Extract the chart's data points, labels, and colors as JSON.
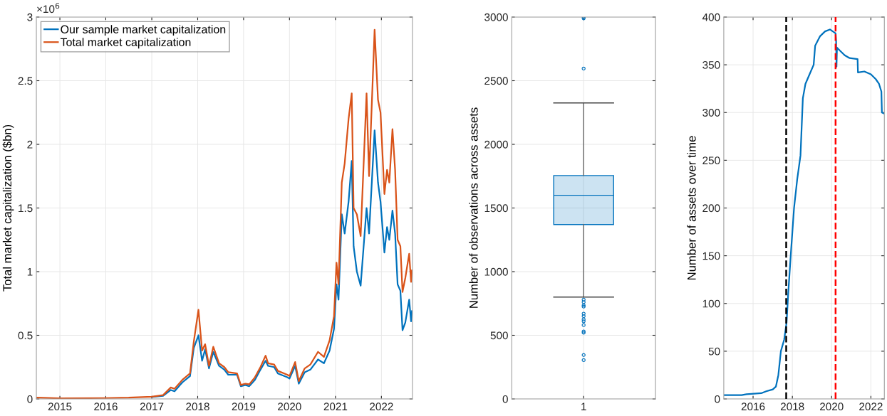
{
  "chart_data": [
    {
      "type": "line",
      "ylabel": "Total market capitalization ($bn)",
      "annotations": [
        "×10$^{6}$"
      ],
      "legend": "top left",
      "grid": true,
      "xlim": [
        "2014-06-28",
        "2022-09-05"
      ],
      "xticks": [
        {
          "value": "2015-01-01",
          "label": "2015"
        },
        {
          "value": "2016-01-01",
          "label": "2016"
        },
        {
          "value": "2017-01-01",
          "label": "2017"
        },
        {
          "value": "2018-01-01",
          "label": "2018"
        },
        {
          "value": "2019-01-01",
          "label": "2019"
        },
        {
          "value": "2020-01-01",
          "label": "2020"
        },
        {
          "value": "2021-01-01",
          "label": "2021"
        },
        {
          "value": "2022-01-01",
          "label": "2022"
        }
      ],
      "ylim": [
        0,
        3
      ],
      "yticks": [
        0,
        0.5,
        1,
        1.5,
        2,
        2.5,
        3
      ],
      "x": [
        "2014-07-01",
        "2015-01-01",
        "2016-01-01",
        "2016-07-01",
        "2017-01-01",
        "2017-04-01",
        "2017-06-01",
        "2017-07-01",
        "2017-09-01",
        "2017-11-01",
        "2017-12-01",
        "2018-01-07",
        "2018-02-05",
        "2018-03-01",
        "2018-04-01",
        "2018-05-05",
        "2018-06-20",
        "2018-08-01",
        "2018-09-01",
        "2018-11-10",
        "2018-12-10",
        "2019-01-15",
        "2019-02-15",
        "2019-04-01",
        "2019-05-15",
        "2019-06-25",
        "2019-07-15",
        "2019-09-01",
        "2019-10-01",
        "2019-12-15",
        "2020-01-01",
        "2020-02-15",
        "2020-03-15",
        "2020-05-01",
        "2020-06-15",
        "2020-08-15",
        "2020-10-01",
        "2020-11-15",
        "2020-12-20",
        "2021-01-09",
        "2021-01-25",
        "2021-02-20",
        "2021-03-15",
        "2021-04-15",
        "2021-05-10",
        "2021-05-25",
        "2021-06-20",
        "2021-07-20",
        "2021-09-05",
        "2021-09-25",
        "2021-11-08",
        "2021-12-05",
        "2021-12-25",
        "2022-01-25",
        "2022-02-15",
        "2022-03-05",
        "2022-03-30",
        "2022-04-20",
        "2022-05-10",
        "2022-06-01",
        "2022-06-18",
        "2022-07-10",
        "2022-08-10",
        "2022-08-25",
        "2022-09-01"
      ],
      "series": [
        {
          "name": "Our sample market capitalization",
          "color": "#0072bd",
          "values": [
            null,
            null,
            null,
            null,
            0.015,
            0.025,
            0.07,
            0.06,
            0.13,
            0.18,
            0.4,
            0.5,
            0.3,
            0.39,
            0.24,
            0.37,
            0.26,
            0.23,
            0.19,
            0.19,
            0.1,
            0.11,
            0.1,
            0.15,
            0.23,
            0.3,
            0.26,
            0.25,
            0.2,
            0.17,
            0.16,
            0.26,
            0.12,
            0.21,
            0.23,
            0.31,
            0.28,
            0.38,
            0.55,
            0.9,
            0.78,
            1.45,
            1.3,
            1.55,
            1.87,
            1.2,
            1.0,
            0.89,
            1.5,
            1.3,
            2.11,
            1.7,
            1.55,
            1.15,
            1.35,
            1.25,
            1.48,
            1.3,
            0.9,
            0.85,
            0.54,
            0.6,
            0.78,
            0.61,
            0.69
          ]
        },
        {
          "name": "Total market capitalization",
          "color": "#d95319",
          "values": [
            0.01,
            0.005,
            0.007,
            0.01,
            0.018,
            0.03,
            0.09,
            0.08,
            0.15,
            0.2,
            0.45,
            0.7,
            0.38,
            0.43,
            0.26,
            0.41,
            0.28,
            0.25,
            0.21,
            0.2,
            0.11,
            0.12,
            0.115,
            0.17,
            0.25,
            0.34,
            0.28,
            0.27,
            0.22,
            0.19,
            0.18,
            0.29,
            0.14,
            0.24,
            0.27,
            0.37,
            0.33,
            0.46,
            0.65,
            1.07,
            0.9,
            1.7,
            1.85,
            2.2,
            2.4,
            1.5,
            1.45,
            1.28,
            2.4,
            1.75,
            2.9,
            2.35,
            2.25,
            1.61,
            1.8,
            1.7,
            2.12,
            1.8,
            1.25,
            1.2,
            0.84,
            0.95,
            1.14,
            0.92,
            1.01
          ]
        }
      ]
    },
    {
      "type": "box",
      "ylabel": "Number of observations across assets",
      "categories": [
        "1"
      ],
      "grid": true,
      "ylim": [
        0,
        3000
      ],
      "yticks": [
        0,
        500,
        1000,
        1500,
        2000,
        2500,
        3000
      ],
      "color": "#0072bd",
      "boxes": [
        {
          "low": 800,
          "q1": 1370,
          "median": 1600,
          "q3": 1755,
          "high": 2325,
          "outliers": [
            3000,
            2990,
            2595,
            780,
            760,
            735,
            725,
            670,
            650,
            625,
            610,
            580,
            530,
            520,
            345,
            305
          ]
        }
      ]
    },
    {
      "type": "line",
      "ylabel": "Number of assets over time",
      "grid": true,
      "xlim": [
        "2014-07-05",
        "2022-09-08"
      ],
      "xticks": [
        {
          "value": "2016-01-01",
          "label": "2016"
        },
        {
          "value": "2018-01-01",
          "label": "2018"
        },
        {
          "value": "2020-01-01",
          "label": "2020"
        },
        {
          "value": "2022-01-01",
          "label": "2022"
        }
      ],
      "ylim": [
        0,
        400
      ],
      "yticks": [
        0,
        50,
        100,
        150,
        200,
        250,
        300,
        350,
        400
      ],
      "ref_lines": [
        {
          "axis": "x",
          "value": "2017-09-08",
          "color": "#000000",
          "line_style": "dashed"
        },
        {
          "axis": "x",
          "value": "2020-03-15",
          "color": "#ff0000",
          "line_style": "dashed"
        }
      ],
      "x": [
        "2014-07-05",
        "2015-06-01",
        "2015-09-01",
        "2016-06-01",
        "2016-09-01",
        "2017-01-01",
        "2017-03-01",
        "2017-04-15",
        "2017-06-01",
        "2017-08-01",
        "2017-09-15",
        "2017-10-15",
        "2017-12-01",
        "2018-02-01",
        "2018-04-01",
        "2018-06-01",
        "2018-07-15",
        "2018-09-01",
        "2018-11-01",
        "2019-02-01",
        "2019-03-01",
        "2019-06-01",
        "2019-09-01",
        "2019-12-01",
        "2020-03-15",
        "2020-03-25",
        "2020-04-01",
        "2020-04-10",
        "2020-06-01",
        "2020-09-01",
        "2020-12-01",
        "2021-04-28",
        "2021-05-05",
        "2021-09-01",
        "2022-01-01",
        "2022-04-01",
        "2022-06-01",
        "2022-07-15",
        "2022-07-25",
        "2022-09-01"
      ],
      "series": [
        {
          "color": "#0072bd",
          "values": [
            4,
            4,
            5,
            6,
            8,
            10,
            13,
            25,
            50,
            62,
            80,
            110,
            150,
            200,
            230,
            255,
            315,
            330,
            338,
            350,
            370,
            380,
            385,
            387,
            383,
            375,
            348,
            368,
            365,
            360,
            357,
            356,
            342,
            343,
            340,
            335,
            330,
            322,
            300,
            299
          ]
        }
      ]
    }
  ]
}
